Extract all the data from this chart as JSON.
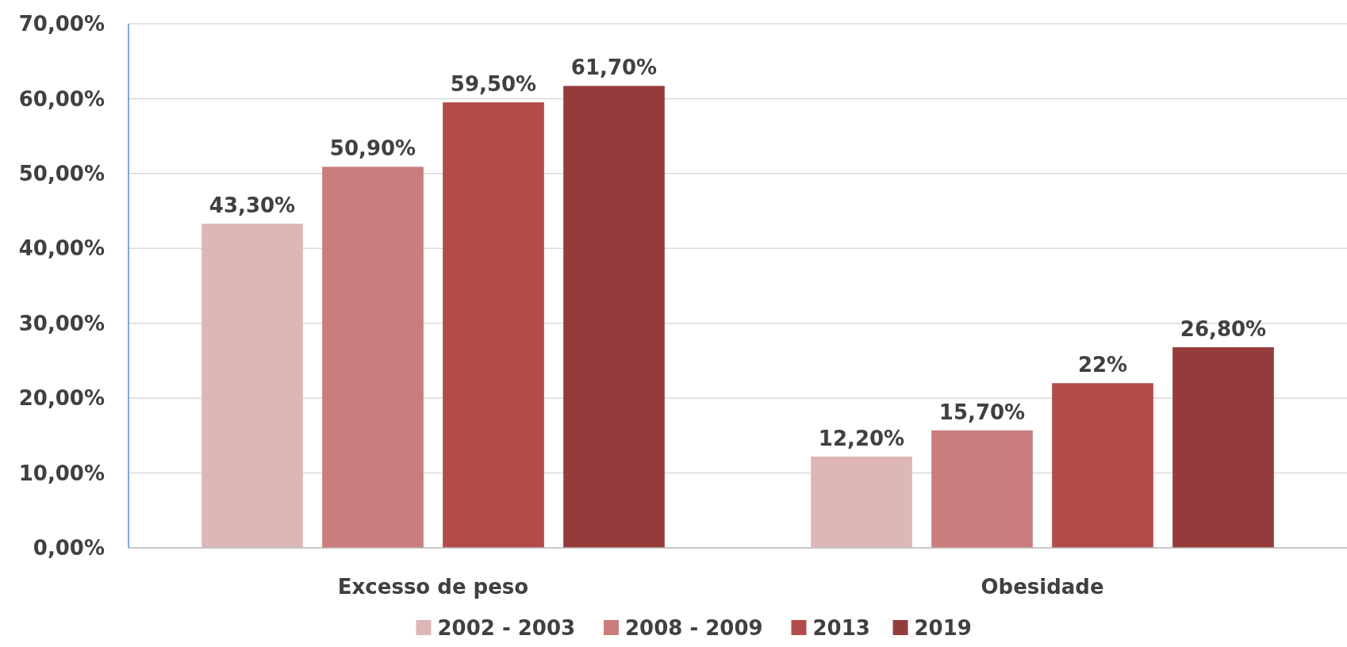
{
  "chart_data": {
    "type": "bar",
    "categories": [
      "Excesso de peso",
      "Obesidade"
    ],
    "series": [
      {
        "name": "2002 - 2003",
        "color": "#dfb6b6",
        "values": [
          43.3,
          12.2
        ],
        "value_labels": [
          "43,30%",
          "12,20%"
        ]
      },
      {
        "name": "2008 - 2009",
        "color": "#c97d7d",
        "values": [
          50.9,
          15.7
        ],
        "value_labels": [
          "50,90%",
          "15,70%"
        ]
      },
      {
        "name": "2013",
        "color": "#b24b4a",
        "values": [
          59.5,
          22
        ],
        "value_labels": [
          "59,50%",
          "22%"
        ]
      },
      {
        "name": "2019",
        "color": "#943c3c",
        "values": [
          61.7,
          26.8
        ],
        "value_labels": [
          "61,70%",
          "26,80%"
        ]
      }
    ],
    "ylim": [
      0,
      70
    ],
    "yticks": [
      {
        "value": 0,
        "label": "0,00%"
      },
      {
        "value": 10,
        "label": "10,00%"
      },
      {
        "value": 20,
        "label": "20,00%"
      },
      {
        "value": 30,
        "label": "30,00%"
      },
      {
        "value": 40,
        "label": "40,00%"
      },
      {
        "value": 50,
        "label": "50,00%"
      },
      {
        "value": 60,
        "label": "60,00%"
      },
      {
        "value": 70,
        "label": "70,00%"
      }
    ],
    "grid": "y",
    "legend": "bottom"
  }
}
